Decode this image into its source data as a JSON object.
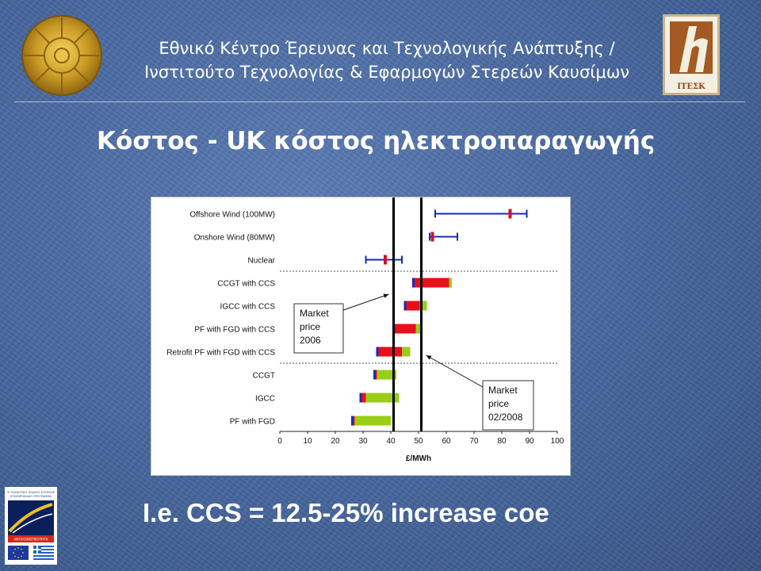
{
  "header": {
    "line1": "Εθνικό Κέντρο Έρευνας και Τεχνολογικής Ανάπτυξης /",
    "line2": "Ινστιτούτο Τεχνολογίας & Εφαρμογών Στερεών Καυσίμων",
    "right_logo_text": "ΙΤΕΣΚ"
  },
  "slide": {
    "title": "Κόστος - UK κόστος ηλεκτροπαραγωγής",
    "footer": "I.e. CCS = 12.5-25% increase coe"
  },
  "eu_logo": {
    "lines": [
      "3° ΚΟΙΝΟΤΙΚΟ ΠΛΑΙΣΙΟ ΣΤΗΡΙΞΗΣ",
      "ΕΠΙΧΕΙΡΗΣΙΑΚΟ ΠΡΟΓΡΑΜΜΑ",
      "ΑΝΤΑΓΩΝΙΣΤΙΚΟΤΗΤΑ"
    ]
  },
  "colors": {
    "accent_red": "#e8101a",
    "accent_green": "#9acd16",
    "range_blue": "#1a2ab8",
    "marker_red": "#d01028",
    "header_text": "#ffffff"
  },
  "chart_data": {
    "type": "bar",
    "orientation": "horizontal",
    "xlabel": "£/MWh",
    "xlim": [
      0,
      100
    ],
    "xticks": [
      0,
      10,
      20,
      30,
      40,
      50,
      60,
      70,
      80,
      90,
      100
    ],
    "categories": [
      "Offshore Wind (100MW)",
      "Onshore Wind (80MW)",
      "Nuclear",
      "CCGT with CCS",
      "IGCC with CCS",
      "PF with FGD with CCS",
      "Retrofit PF with FGD with CCS",
      "CCGT",
      "IGCC",
      "PF with FGD"
    ],
    "ranges": [
      {
        "category": "Offshore Wind (100MW)",
        "low": 56,
        "high": 89,
        "marker": 83
      },
      {
        "category": "Onshore Wind (80MW)",
        "low": 54,
        "high": 64,
        "marker": 55
      },
      {
        "category": "Nuclear",
        "low": 31,
        "high": 44,
        "marker": 38
      }
    ],
    "stacked": [
      {
        "category": "CCGT with CCS",
        "red": [
          48,
          61
        ],
        "green": [
          61,
          62
        ]
      },
      {
        "category": "IGCC with CCS",
        "red": [
          45,
          50.5
        ],
        "green": [
          50.5,
          53
        ]
      },
      {
        "category": "PF with FGD with CCS",
        "red": [
          41,
          49
        ],
        "green": [
          49,
          51
        ]
      },
      {
        "category": "Retrofit PF with FGD with CCS",
        "red": [
          35,
          44
        ],
        "green": [
          44,
          47
        ]
      },
      {
        "category": "CCGT",
        "red": [
          34,
          35
        ],
        "green": [
          35,
          42
        ]
      },
      {
        "category": "IGCC",
        "red": [
          29,
          31
        ],
        "green": [
          31,
          43
        ]
      },
      {
        "category": "PF with FGD",
        "red": [
          26,
          27
        ],
        "green": [
          27,
          40
        ]
      }
    ],
    "reference_lines": [
      {
        "value": 41,
        "label": [
          "Market",
          "price",
          "2006"
        ]
      },
      {
        "value": 51,
        "label": [
          "Market",
          "price",
          "02/2008"
        ]
      }
    ],
    "group_separators_after": [
      "Nuclear",
      "Retrofit PF with FGD with CCS"
    ]
  }
}
